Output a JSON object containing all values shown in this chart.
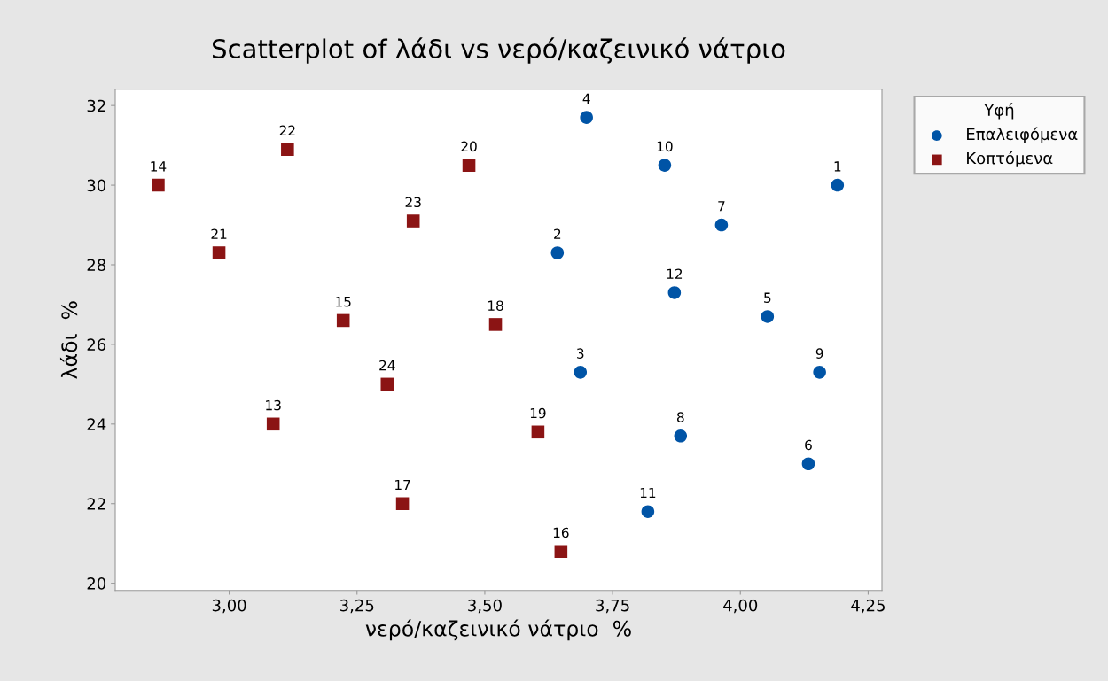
{
  "chart_data": {
    "type": "scatter",
    "title": "Scatterplot of λάδι vs νερό/καζεινικό νάτριο",
    "xlabel": "νερό/καζεινικό νάτριο  %",
    "ylabel": "λάδι  %",
    "legend_title": "Υφή",
    "legend": "right",
    "grid": false,
    "xlim": [
      2.777,
      4.277
    ],
    "ylim": [
      19.82,
      32.41
    ],
    "xticks": [
      {
        "value": 3.0,
        "label": "3,00"
      },
      {
        "value": 3.25,
        "label": "3,25"
      },
      {
        "value": 3.5,
        "label": "3,50"
      },
      {
        "value": 3.75,
        "label": "3,75"
      },
      {
        "value": 4.0,
        "label": "4,00"
      },
      {
        "value": 4.25,
        "label": "4,25"
      }
    ],
    "yticks": [
      20,
      22,
      24,
      26,
      28,
      30,
      32
    ],
    "series": [
      {
        "name": "Επαλειφόμενα",
        "color": "#0054a6",
        "marker": "circle",
        "x": [
          4.19,
          3.642,
          3.687,
          3.699,
          4.053,
          4.133,
          3.963,
          3.883,
          4.155,
          3.852,
          3.819,
          3.871
        ],
        "values": [
          30.0,
          28.3,
          25.3,
          31.7,
          26.7,
          23.0,
          29.0,
          23.7,
          25.3,
          30.5,
          21.8,
          27.3
        ]
      },
      {
        "name": "Κοπτόμενα",
        "color": "#8b1414",
        "marker": "square",
        "x": [
          3.086,
          2.861,
          3.223,
          3.649,
          3.339,
          3.521,
          3.604,
          3.469,
          2.98,
          3.114,
          3.36,
          3.309
        ],
        "values": [
          24.0,
          30.0,
          26.6,
          20.8,
          22.0,
          26.5,
          23.8,
          30.5,
          28.3,
          30.9,
          29.1,
          25.0
        ]
      }
    ],
    "annotations": [
      {
        "text": "1",
        "x": 4.19,
        "y": 30.0
      },
      {
        "text": "2",
        "x": 3.642,
        "y": 28.3
      },
      {
        "text": "3",
        "x": 3.687,
        "y": 25.3
      },
      {
        "text": "4",
        "x": 3.699,
        "y": 31.7
      },
      {
        "text": "5",
        "x": 4.053,
        "y": 26.7
      },
      {
        "text": "6",
        "x": 4.133,
        "y": 23.0
      },
      {
        "text": "7",
        "x": 3.963,
        "y": 29.0
      },
      {
        "text": "8",
        "x": 3.883,
        "y": 23.7
      },
      {
        "text": "9",
        "x": 4.155,
        "y": 25.3
      },
      {
        "text": "10",
        "x": 3.852,
        "y": 30.5
      },
      {
        "text": "11",
        "x": 3.819,
        "y": 21.8
      },
      {
        "text": "12",
        "x": 3.871,
        "y": 27.3
      },
      {
        "text": "13",
        "x": 3.086,
        "y": 24.0
      },
      {
        "text": "14",
        "x": 2.861,
        "y": 30.0
      },
      {
        "text": "15",
        "x": 3.223,
        "y": 26.6
      },
      {
        "text": "16",
        "x": 3.649,
        "y": 20.8
      },
      {
        "text": "17",
        "x": 3.339,
        "y": 22.0
      },
      {
        "text": "18",
        "x": 3.521,
        "y": 26.5
      },
      {
        "text": "19",
        "x": 3.604,
        "y": 23.8
      },
      {
        "text": "20",
        "x": 3.469,
        "y": 30.5
      },
      {
        "text": "21",
        "x": 2.98,
        "y": 28.3
      },
      {
        "text": "22",
        "x": 3.114,
        "y": 30.9
      },
      {
        "text": "23",
        "x": 3.36,
        "y": 29.1
      },
      {
        "text": "24",
        "x": 3.309,
        "y": 25.0
      }
    ]
  }
}
